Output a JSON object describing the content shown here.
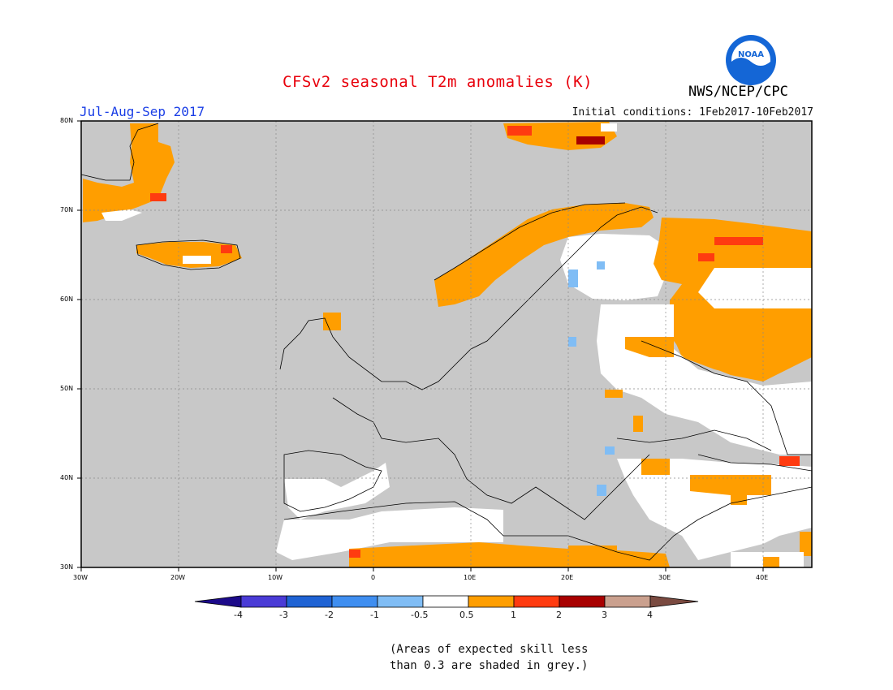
{
  "header": {
    "title": "CFSv2 seasonal T2m anomalies (K)",
    "period": "Jul-Aug-Sep 2017",
    "initial_conditions": "Initial conditions: 1Feb2017-10Feb2017",
    "agency": "NWS/NCEP/CPC",
    "logo_text": "NOAA"
  },
  "map": {
    "lon_range": [
      -30,
      45
    ],
    "lat_range": [
      30,
      80
    ],
    "lon_labels": [
      "30W",
      "20W",
      "10W",
      "0",
      "10E",
      "20E",
      "30E",
      "40E"
    ],
    "lat_labels": [
      "80N",
      "70N",
      "60N",
      "50N",
      "40N",
      "30N"
    ],
    "background_color": "#c8c8c8"
  },
  "colorbar": {
    "labels": [
      "-4",
      "-3",
      "-2",
      "-1",
      "-0.5",
      "0.5",
      "1",
      "2",
      "3",
      "4"
    ],
    "colors": [
      "#1c0a8a",
      "#4a3bd6",
      "#1f63d4",
      "#3f8ef0",
      "#80bdf5",
      "#ffffff",
      "#ff9e00",
      "#ff3b10",
      "#a80000",
      "#caa08e",
      "#7a4a40"
    ]
  },
  "note": {
    "line1": "(Areas of expected skill less",
    "line2": "than 0.3 are shaded in grey.)"
  }
}
